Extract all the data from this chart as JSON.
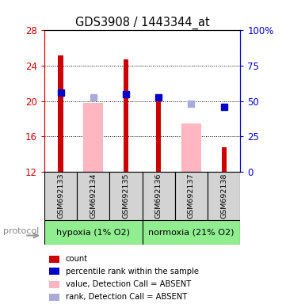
{
  "title": "GDS3908 / 1443344_at",
  "samples": [
    "GSM692133",
    "GSM692134",
    "GSM692135",
    "GSM692136",
    "GSM692137",
    "GSM692138"
  ],
  "ylim_left": [
    12,
    28
  ],
  "ylim_right": [
    0,
    100
  ],
  "yticks_left": [
    12,
    16,
    20,
    24,
    28
  ],
  "yticks_right": [
    0,
    25,
    50,
    75,
    100
  ],
  "count_values": [
    25.2,
    null,
    24.7,
    20.35,
    null,
    14.8
  ],
  "count_color": "#CC0000",
  "rank_values": [
    21.0,
    null,
    20.8,
    20.4,
    null,
    19.35
  ],
  "rank_color": "#0000CC",
  "absent_value_bars": [
    null,
    19.8,
    null,
    null,
    17.5,
    null
  ],
  "absent_value_color": "#FFB6C1",
  "absent_rank_values": [
    null,
    20.4,
    null,
    null,
    19.7,
    null
  ],
  "absent_rank_color": "#AAAADD",
  "bar_bottom": 12,
  "grid_lines": [
    16,
    20,
    24
  ],
  "hypoxia_label": "hypoxia (1% O2)",
  "normoxia_label": "normoxia (21% O2)",
  "group_color": "#90EE90",
  "sample_box_color": "#D3D3D3",
  "protocol_label": "protocol",
  "left_axis_color": "#CC0000",
  "right_axis_color": "#0000CC",
  "legend_items": [
    {
      "color": "#CC0000",
      "label": "count"
    },
    {
      "color": "#0000CC",
      "label": "percentile rank within the sample"
    },
    {
      "color": "#FFB6C1",
      "label": "value, Detection Call = ABSENT"
    },
    {
      "color": "#AAAADD",
      "label": "rank, Detection Call = ABSENT"
    }
  ]
}
